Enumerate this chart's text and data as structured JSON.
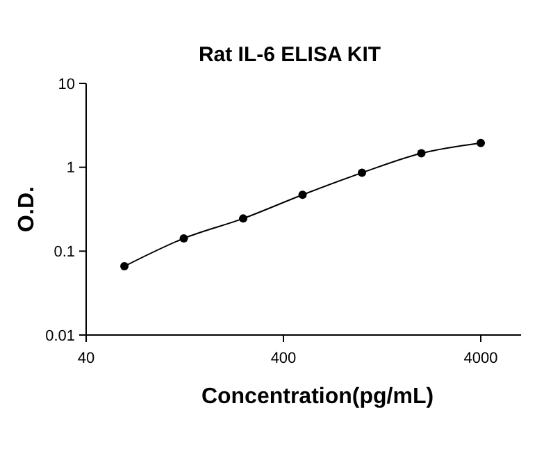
{
  "chart_data": {
    "type": "line",
    "title": "Rat IL-6 ELISA KIT",
    "xlabel": "Concentration(pg/mL)",
    "ylabel": "O.D.",
    "log": "xy",
    "marker": "circle",
    "grid": false,
    "xlim": [
      40,
      6400
    ],
    "xticks": [
      40,
      400,
      4000
    ],
    "ylim": [
      0.01,
      10
    ],
    "yticks": [
      0.01,
      0.1,
      1,
      10
    ],
    "series": [
      {
        "color": "#000000",
        "x": [
          62.5,
          125,
          250,
          500,
          1000,
          2000,
          4000
        ],
        "values": [
          0.066,
          0.142,
          0.245,
          0.47,
          0.86,
          1.47,
          1.95
        ]
      }
    ]
  }
}
